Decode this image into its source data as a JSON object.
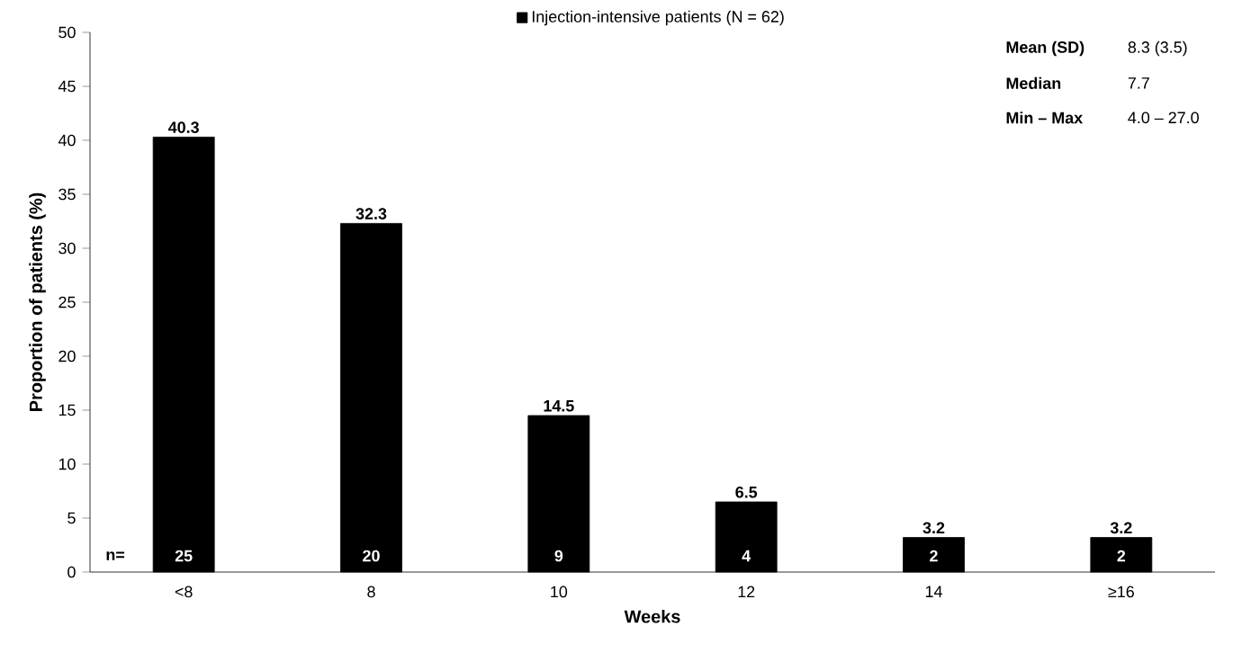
{
  "chart_data": {
    "type": "bar",
    "categories": [
      "<8",
      "8",
      "10",
      "12",
      "14",
      "≥16"
    ],
    "series": [
      {
        "name": "Injection-intensive patients (N = 62)",
        "color": "#000000",
        "values": [
          40.3,
          32.3,
          14.5,
          6.5,
          3.2,
          3.2
        ]
      }
    ],
    "xlabel": "Weeks",
    "ylabel": "Proportion of patients (%)",
    "ylim": [
      0,
      50
    ],
    "yticks": [
      0,
      5,
      10,
      15,
      20,
      25,
      30,
      35,
      40,
      45,
      50
    ],
    "data_labels": true,
    "legend": "top",
    "grid": false,
    "annotations": [
      "Mean (SD)",
      "8.3 (3.5)",
      "Median",
      "7.7",
      "Min – Max",
      "4.0 – 27.0",
      "n=",
      "25",
      "20",
      "9",
      "4",
      "2",
      "2"
    ]
  }
}
